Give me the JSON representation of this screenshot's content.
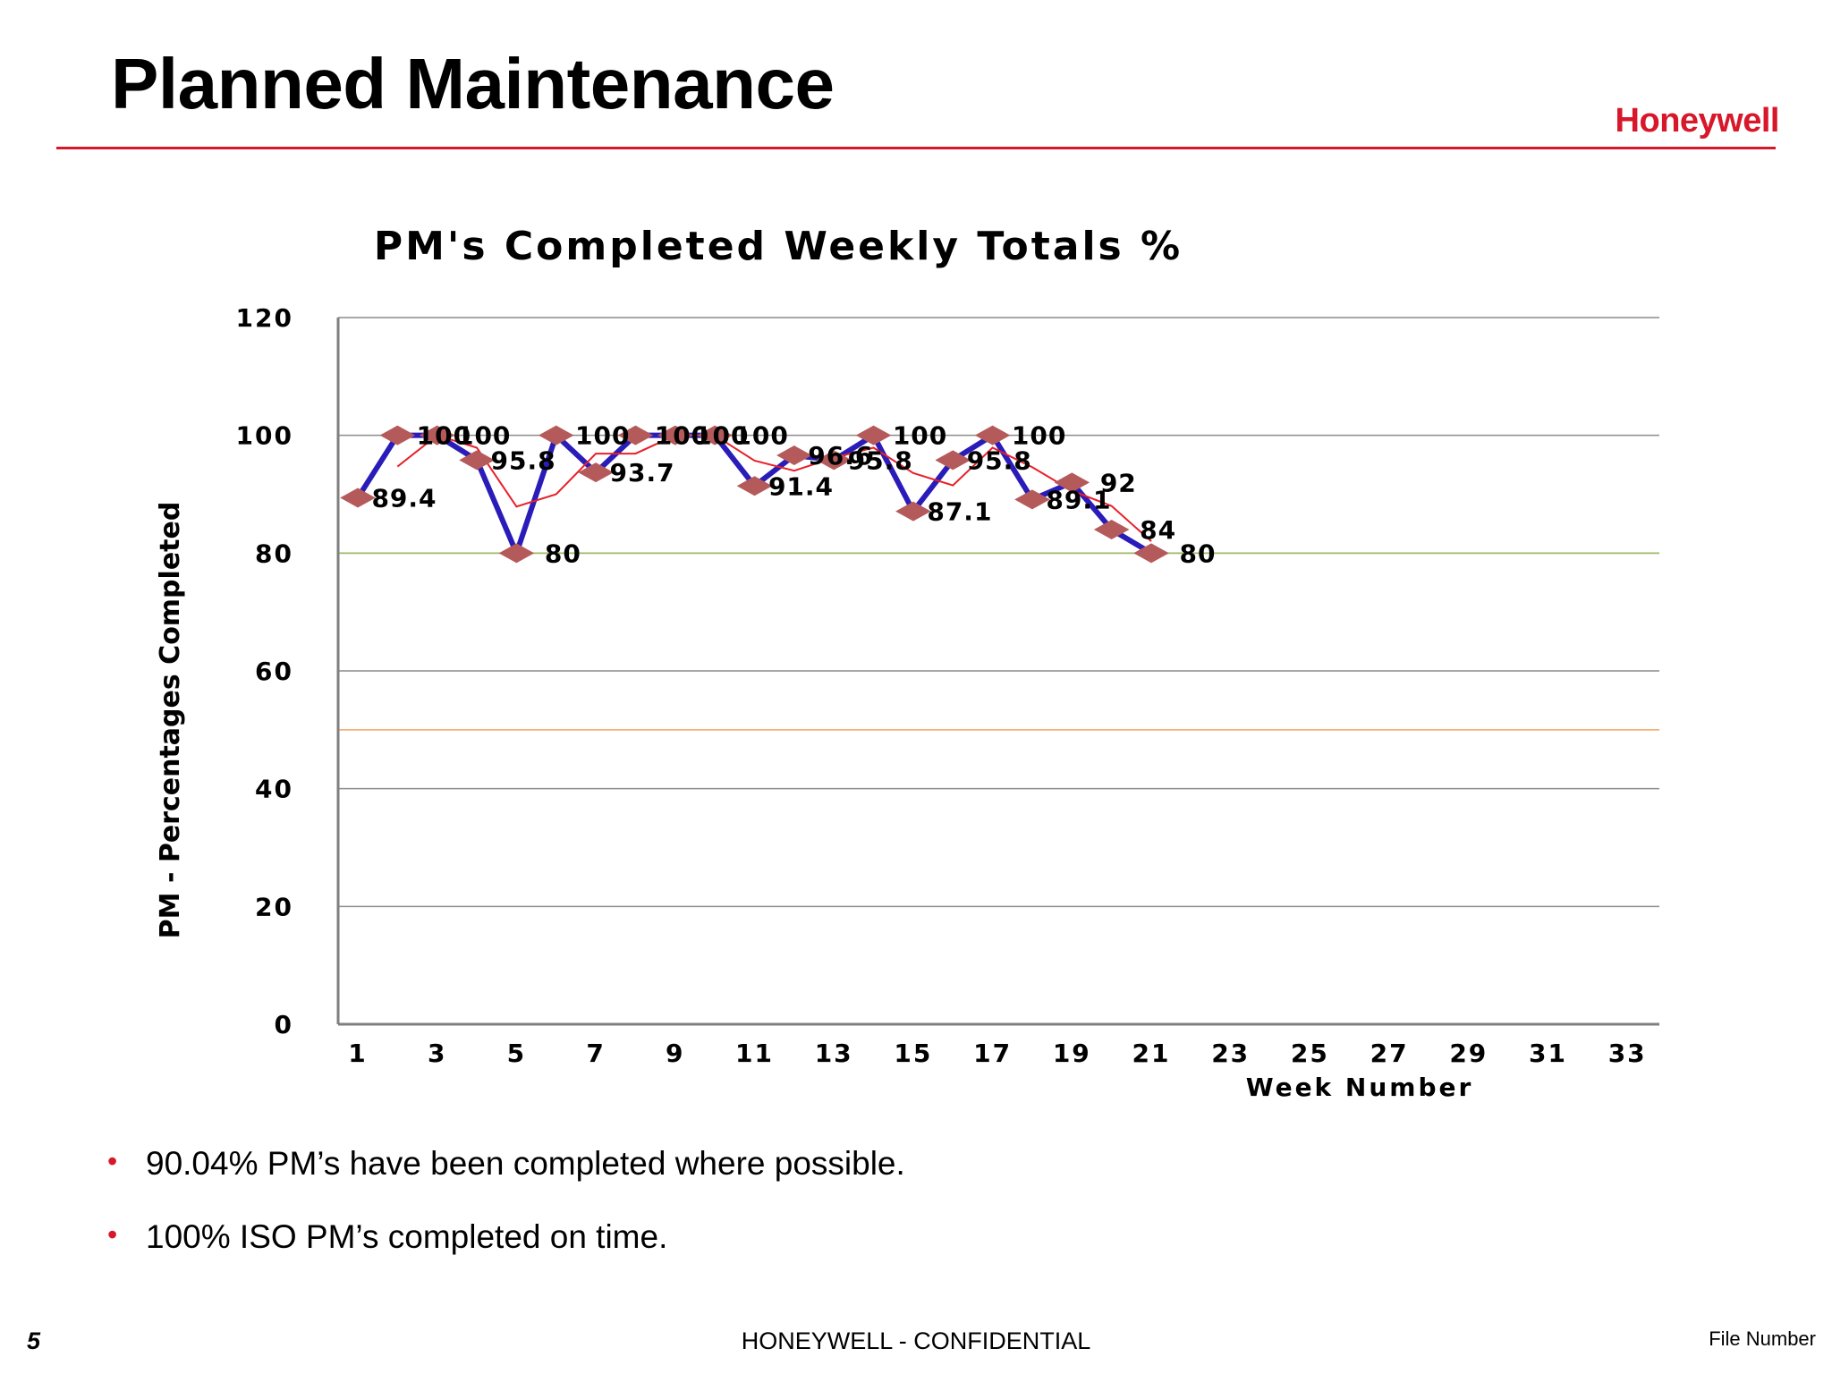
{
  "slide": {
    "title": "Planned Maintenance",
    "logo_text": "Honeywell",
    "brand_color": "#d7182a"
  },
  "bullets": [
    {
      "text": "90.04% PM’s have been completed where possible."
    },
    {
      "text": "100%  ISO PM’s completed on time."
    }
  ],
  "footer": {
    "page_number": "5",
    "confidential": "HONEYWELL - CONFIDENTIAL",
    "file_number": "File Number"
  },
  "chart_data": {
    "type": "line",
    "title": "PM's Completed Weekly Totals %",
    "xlabel": "Week Number",
    "ylabel": "PM - Percentages Completed",
    "ylim": [
      0,
      120
    ],
    "yticks": [
      0,
      20,
      40,
      60,
      80,
      100,
      120
    ],
    "xlim": [
      1,
      34
    ],
    "xtick_labels": [
      "1",
      "3",
      "5",
      "7",
      "9",
      "11",
      "13",
      "15",
      "17",
      "19",
      "21",
      "23",
      "25",
      "27",
      "29",
      "31",
      "33",
      "3"
    ],
    "grid": true,
    "legend": "none",
    "reference_lines": [
      {
        "value": 80,
        "color": "#9bbb59"
      },
      {
        "value": 50,
        "color": "#f4a460"
      }
    ],
    "series": [
      {
        "color": "#2a1cb8",
        "marker_color": "#b55a5a",
        "x": [
          1,
          2,
          3,
          4,
          5,
          6,
          7,
          8,
          9,
          10,
          11,
          12,
          13,
          14,
          15,
          16,
          17,
          18,
          19,
          20,
          21
        ],
        "values": [
          89.4,
          100,
          100,
          95.8,
          80,
          100,
          93.7,
          100,
          100,
          100,
          91.4,
          96.6,
          95.8,
          100,
          87.1,
          95.8,
          100,
          89.1,
          92,
          84,
          80
        ],
        "data_labels": [
          "89.4",
          "100",
          "100",
          "95.8",
          "80",
          "100",
          "93.7",
          "100",
          "100",
          "100",
          "91.4",
          "96.6",
          "95.8",
          "100",
          "87.1",
          "95.8",
          "100",
          "89.1",
          "92",
          "84",
          "80"
        ]
      },
      {
        "type": "trend",
        "color": "#e8202a",
        "x": [
          2,
          3,
          4,
          5,
          6,
          7,
          8,
          9,
          10,
          11,
          12,
          13,
          14,
          15,
          16,
          17,
          18,
          19,
          20,
          21
        ],
        "values": [
          94.7,
          100,
          97.9,
          87.9,
          90,
          96.9,
          96.9,
          100,
          100,
          95.7,
          94,
          96.2,
          97.9,
          93.6,
          91.5,
          97.9,
          94.6,
          90.6,
          88,
          82
        ]
      }
    ]
  }
}
